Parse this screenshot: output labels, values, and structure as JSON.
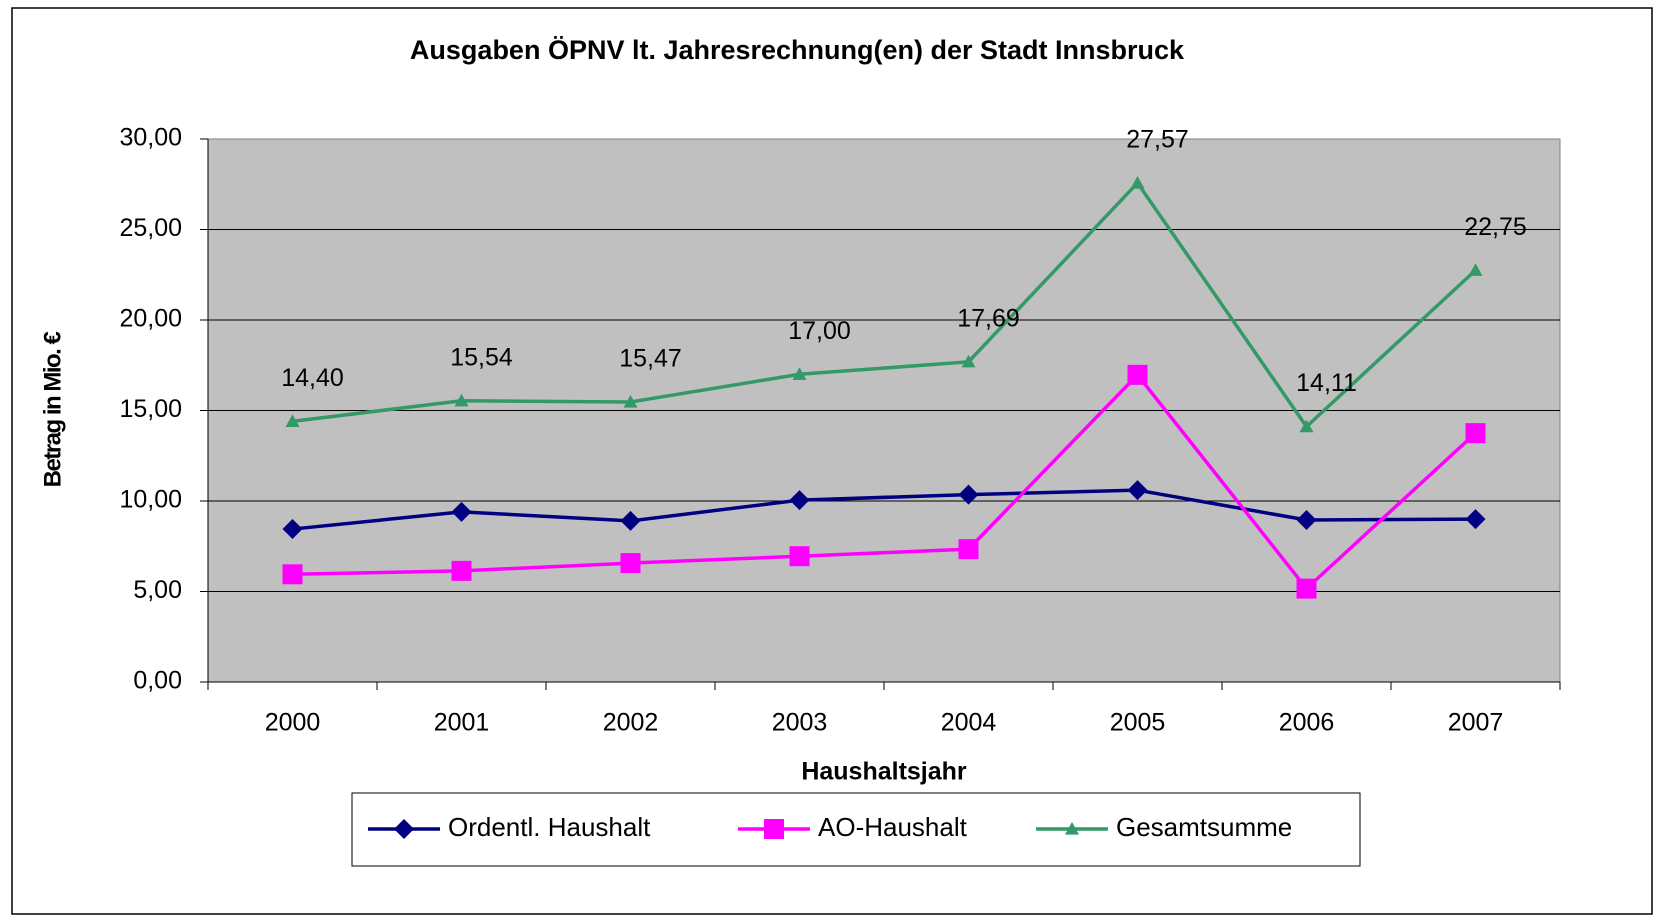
{
  "chart_data": {
    "type": "line",
    "title": "Ausgaben ÖPNV lt. Jahresrechnung(en) der Stadt Innsbruck",
    "x_label": "Haushaltsjahr",
    "y_label": "Betrag in Mio. €",
    "categories": [
      "2000",
      "2001",
      "2002",
      "2003",
      "2004",
      "2005",
      "2006",
      "2007"
    ],
    "series": [
      {
        "name": "Ordentl. Haushalt",
        "color": "#000080",
        "marker": "diamond",
        "values": [
          8.45,
          9.4,
          8.9,
          10.05,
          10.35,
          10.6,
          8.95,
          9.0
        ]
      },
      {
        "name": "AO-Haushalt",
        "color": "#ff00ff",
        "marker": "square",
        "values": [
          5.95,
          6.14,
          6.57,
          6.95,
          7.34,
          16.97,
          5.16,
          13.75
        ]
      },
      {
        "name": "Gesamtsumme",
        "color": "#339966",
        "marker": "triangle",
        "values": [
          14.4,
          15.54,
          15.47,
          17.0,
          17.69,
          27.57,
          14.11,
          22.75
        ],
        "value_labels": [
          "14,40",
          "15,54",
          "15,47",
          "17,00",
          "17,69",
          "27,57",
          "14,11",
          "22,75"
        ]
      }
    ],
    "ylim": [
      0,
      30
    ],
    "yticks": [
      {
        "value": 0,
        "label": "0,00"
      },
      {
        "value": 5,
        "label": "5,00"
      },
      {
        "value": 10,
        "label": "10,00"
      },
      {
        "value": 15,
        "label": "15,00"
      },
      {
        "value": 20,
        "label": "20,00"
      },
      {
        "value": 25,
        "label": "25,00"
      },
      {
        "value": 30,
        "label": "30,00"
      }
    ],
    "grid": true,
    "legend": "bottom"
  }
}
